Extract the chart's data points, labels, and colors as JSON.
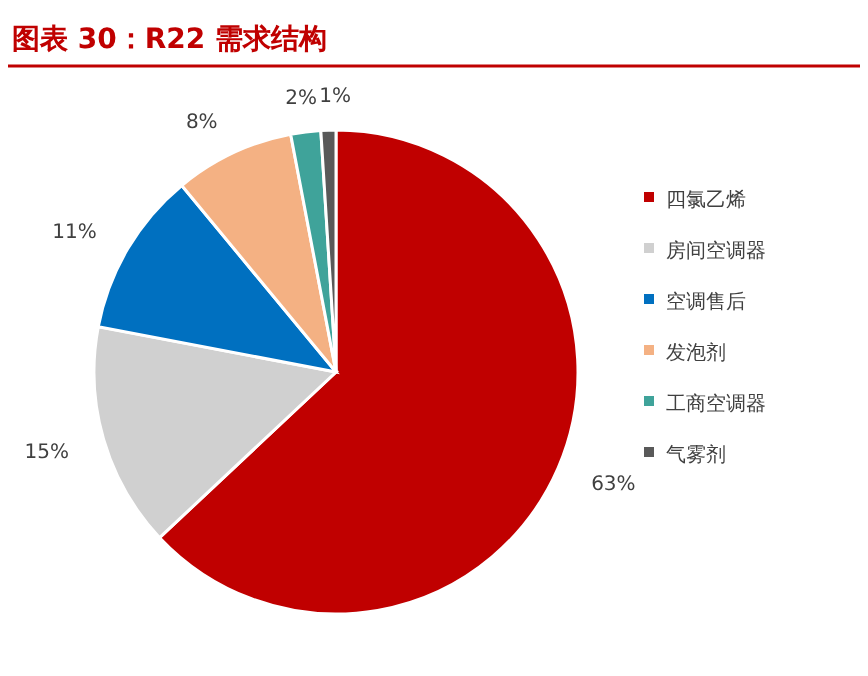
{
  "chart_data": {
    "type": "pie",
    "title": "图表 30：R22 需求结构",
    "categories": [
      "四氯乙烯",
      "房间空调器",
      "空调售后",
      "发泡剂",
      "工商空调器",
      "气雾剂"
    ],
    "values": [
      63,
      15,
      11,
      8,
      2,
      1
    ],
    "colors": [
      "#c00000",
      "#d0d0d0",
      "#0070c0",
      "#f4b183",
      "#3fa39a",
      "#595959"
    ],
    "value_labels": [
      "63%",
      "15%",
      "11%",
      "8%",
      "2%",
      "1%"
    ],
    "legend": "right"
  }
}
